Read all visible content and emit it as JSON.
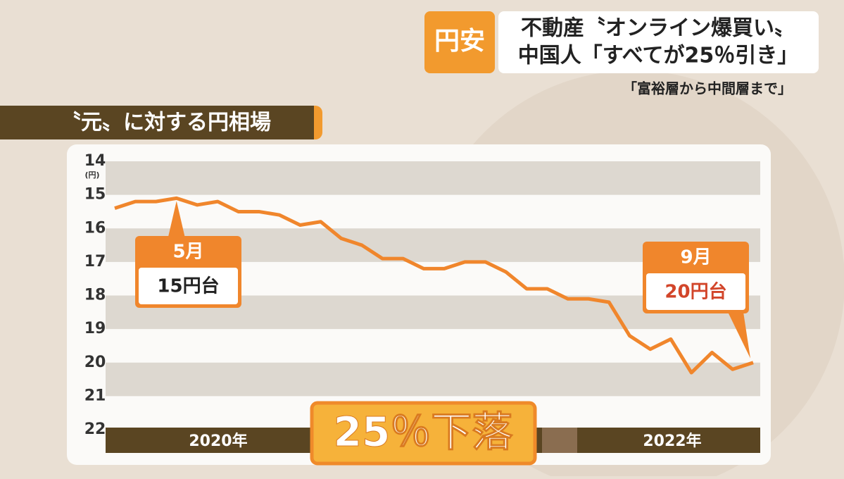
{
  "header": {
    "tag": "円安",
    "headline1": "不動産〝オンライン爆買い〟",
    "headline2": "中国人「すべてが25％引き」",
    "subtitle": "「富裕層から中間層まで」"
  },
  "chart_data": {
    "type": "line",
    "title": "〝元〟に対する円相場",
    "categories": [
      null,
      null,
      null,
      null,
      null,
      null,
      null,
      null,
      null,
      null,
      null,
      null,
      null,
      null,
      null,
      null,
      null,
      null,
      null,
      null,
      null,
      null,
      null,
      null,
      null,
      null,
      null,
      null,
      null,
      null,
      null,
      null
    ],
    "values": [
      15.4,
      15.2,
      15.2,
      15.1,
      15.3,
      15.2,
      15.5,
      15.5,
      15.6,
      15.9,
      15.8,
      16.3,
      16.5,
      16.9,
      16.9,
      17.2,
      17.2,
      17.0,
      17.0,
      17.3,
      17.8,
      17.8,
      18.1,
      18.1,
      18.2,
      19.2,
      19.6,
      19.3,
      20.3,
      19.7,
      20.2,
      20.0
    ],
    "color": "#f0862c",
    "ylim": [
      14,
      22
    ],
    "yticks": [
      14,
      15,
      16,
      17,
      18,
      19,
      20,
      21,
      22
    ],
    "y_reversed": true,
    "y_unit": "(円)",
    "stripes": true,
    "x_band_labels": [
      "2020年",
      "2022年"
    ],
    "annotations": [
      {
        "index": 3,
        "month": "5月",
        "text": "15円台"
      },
      {
        "index": 31,
        "month": "9月",
        "text": "20円台"
      }
    ],
    "headline_label": "25％下落"
  }
}
